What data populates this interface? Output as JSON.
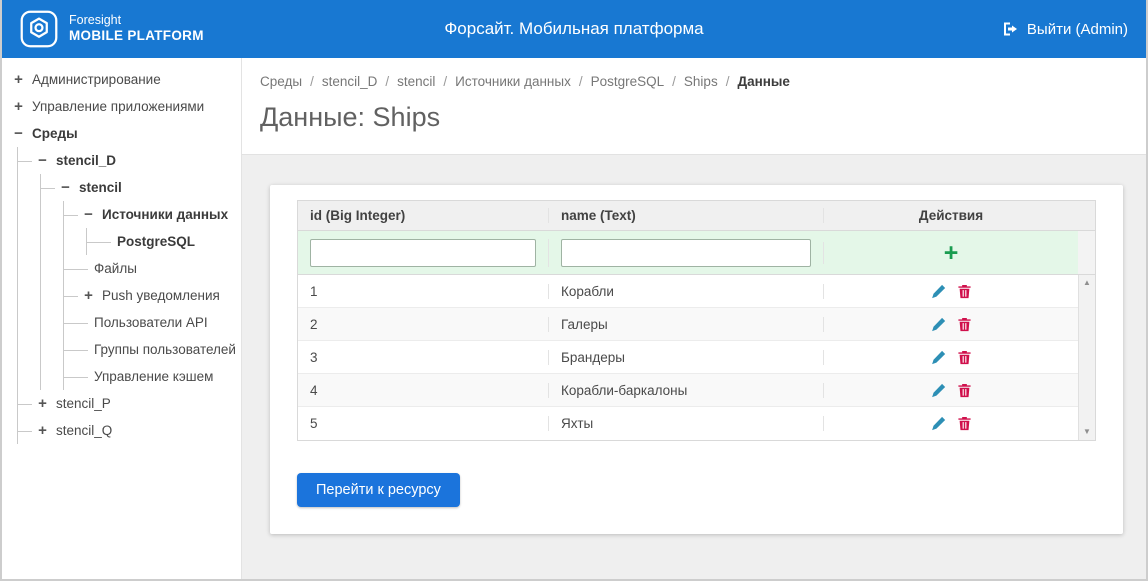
{
  "header": {
    "logo_line1": "Foresight",
    "logo_line2": "MOBILE PLATFORM",
    "title": "Форсайт. Мобильная платформа",
    "logout_label": "Выйти (Admin)"
  },
  "sidebar": {
    "items": [
      {
        "label": "Администрирование",
        "level": 0,
        "toggle": "plus",
        "bold": false
      },
      {
        "label": "Управление приложениями",
        "level": 0,
        "toggle": "plus",
        "bold": false
      },
      {
        "label": "Среды",
        "level": 0,
        "toggle": "minus",
        "bold": true
      },
      {
        "label": "stencil_D",
        "level": 1,
        "toggle": "minus",
        "bold": true
      },
      {
        "label": "stencil",
        "level": 2,
        "toggle": "minus",
        "bold": true
      },
      {
        "label": "Источники данных",
        "level": 3,
        "toggle": "minus",
        "bold": true
      },
      {
        "label": "PostgreSQL",
        "level": 4,
        "toggle": "none",
        "bold": true
      },
      {
        "label": "Файлы",
        "level": 3,
        "toggle": "none",
        "bold": false
      },
      {
        "label": "Push уведомления",
        "level": 3,
        "toggle": "plus",
        "bold": false
      },
      {
        "label": "Пользователи API",
        "level": 3,
        "toggle": "none",
        "bold": false
      },
      {
        "label": "Группы пользователей",
        "level": 3,
        "toggle": "none",
        "bold": false
      },
      {
        "label": "Управление кэшем",
        "level": 3,
        "toggle": "none",
        "bold": false
      },
      {
        "label": "stencil_P",
        "level": 1,
        "toggle": "plus",
        "bold": false
      },
      {
        "label": "stencil_Q",
        "level": 1,
        "toggle": "plus",
        "bold": false
      }
    ]
  },
  "breadcrumb": [
    "Среды",
    "stencil_D",
    "stencil",
    "Источники данных",
    "PostgreSQL",
    "Ships",
    "Данные"
  ],
  "page": {
    "title": "Данные: Ships"
  },
  "table": {
    "columns": [
      "id (Big Integer)",
      "name (Text)",
      "Действия"
    ],
    "filter": {
      "id_value": "",
      "name_value": "",
      "add_label": "+"
    },
    "rows": [
      {
        "id": "1",
        "name": "Корабли"
      },
      {
        "id": "2",
        "name": "Галеры"
      },
      {
        "id": "3",
        "name": "Брандеры"
      },
      {
        "id": "4",
        "name": "Корабли-баркалоны"
      },
      {
        "id": "5",
        "name": "Яхты"
      }
    ]
  },
  "actions": {
    "go_to_resource": "Перейти к ресурсу"
  },
  "icons": {
    "plus_glyph": "+",
    "minus_glyph": "−",
    "scroll_up_glyph": "▲",
    "scroll_down_glyph": "▼"
  },
  "colors": {
    "header_blue": "#1878d2",
    "button_blue": "#1b74dc",
    "add_green": "#1a9c50",
    "edit_blue": "#2d8fb5",
    "delete_red": "#d0104c",
    "filter_row_green": "#e4f7e8"
  }
}
